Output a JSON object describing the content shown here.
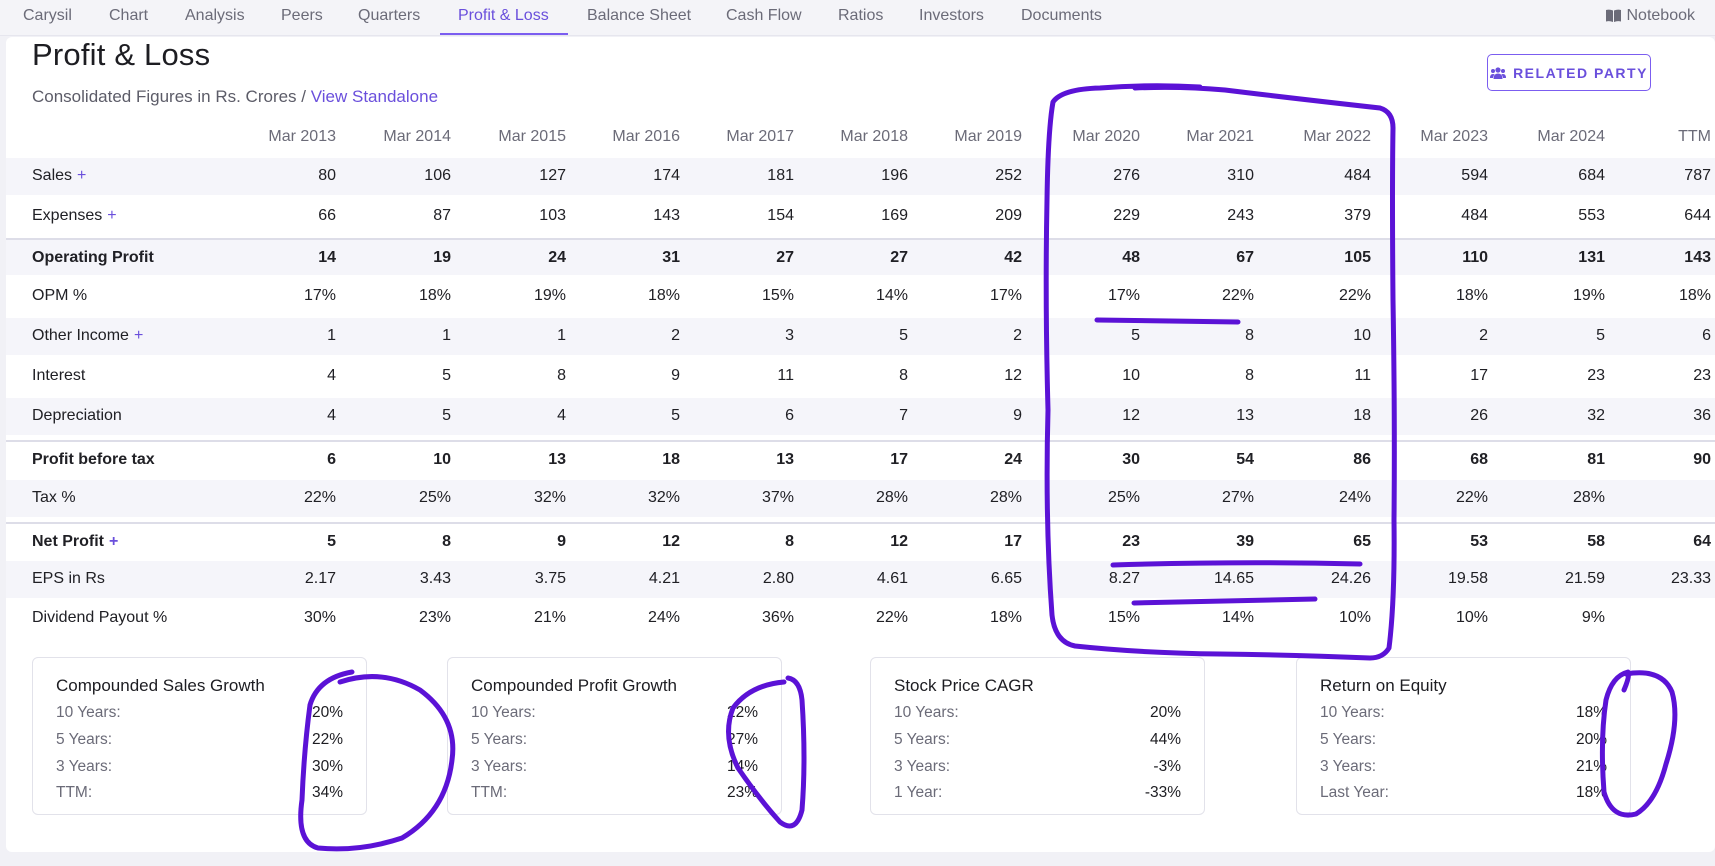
{
  "nav": {
    "items": [
      "Carysil",
      "Chart",
      "Analysis",
      "Peers",
      "Quarters",
      "Profit & Loss",
      "Balance Sheet",
      "Cash Flow",
      "Ratios",
      "Investors",
      "Documents"
    ],
    "active": "Profit & Loss",
    "notebook": "Notebook"
  },
  "header": {
    "title": "Profit & Loss",
    "subtitle": "Consolidated Figures in Rs. Crores / ",
    "standalone_link": "View Standalone",
    "related_party": "RELATED PARTY"
  },
  "table": {
    "columns": [
      "Mar 2013",
      "Mar 2014",
      "Mar 2015",
      "Mar 2016",
      "Mar 2017",
      "Mar 2018",
      "Mar 2019",
      "Mar 2020",
      "Mar 2021",
      "Mar 2022",
      "Mar 2023",
      "Mar 2024",
      "TTM"
    ],
    "rows": [
      {
        "label": "Sales",
        "plus": "+",
        "values": [
          "80",
          "106",
          "127",
          "174",
          "181",
          "196",
          "252",
          "276",
          "310",
          "484",
          "594",
          "684",
          "787"
        ]
      },
      {
        "label": "Expenses",
        "plus": "+",
        "values": [
          "66",
          "87",
          "103",
          "143",
          "154",
          "169",
          "209",
          "229",
          "243",
          "379",
          "484",
          "553",
          "644"
        ]
      },
      {
        "label": "Operating Profit",
        "plus": "",
        "values": [
          "14",
          "19",
          "24",
          "31",
          "27",
          "27",
          "42",
          "48",
          "67",
          "105",
          "110",
          "131",
          "143"
        ]
      },
      {
        "label": "OPM %",
        "plus": "",
        "values": [
          "17%",
          "18%",
          "19%",
          "18%",
          "15%",
          "14%",
          "17%",
          "17%",
          "22%",
          "22%",
          "18%",
          "19%",
          "18%"
        ]
      },
      {
        "label": "Other Income",
        "plus": "+",
        "values": [
          "1",
          "1",
          "1",
          "2",
          "3",
          "5",
          "2",
          "5",
          "8",
          "10",
          "2",
          "5",
          "6"
        ]
      },
      {
        "label": "Interest",
        "plus": "",
        "values": [
          "4",
          "5",
          "8",
          "9",
          "11",
          "8",
          "12",
          "10",
          "8",
          "11",
          "17",
          "23",
          "23"
        ]
      },
      {
        "label": "Depreciation",
        "plus": "",
        "values": [
          "4",
          "5",
          "4",
          "5",
          "6",
          "7",
          "9",
          "12",
          "13",
          "18",
          "26",
          "32",
          "36"
        ]
      },
      {
        "label": "Profit before tax",
        "plus": "",
        "values": [
          "6",
          "10",
          "13",
          "18",
          "13",
          "17",
          "24",
          "30",
          "54",
          "86",
          "68",
          "81",
          "90"
        ]
      },
      {
        "label": "Tax %",
        "plus": "",
        "values": [
          "22%",
          "25%",
          "32%",
          "32%",
          "37%",
          "28%",
          "28%",
          "25%",
          "27%",
          "24%",
          "22%",
          "28%",
          ""
        ]
      },
      {
        "label": "Net Profit",
        "plus": "+",
        "values": [
          "5",
          "8",
          "9",
          "12",
          "8",
          "12",
          "17",
          "23",
          "39",
          "65",
          "53",
          "58",
          "64"
        ]
      },
      {
        "label": "EPS in Rs",
        "plus": "",
        "values": [
          "2.17",
          "3.43",
          "3.75",
          "4.21",
          "2.80",
          "4.61",
          "6.65",
          "8.27",
          "14.65",
          "24.26",
          "19.58",
          "21.59",
          "23.33"
        ]
      },
      {
        "label": "Dividend Payout %",
        "plus": "",
        "values": [
          "30%",
          "23%",
          "21%",
          "24%",
          "36%",
          "22%",
          "18%",
          "15%",
          "14%",
          "10%",
          "10%",
          "9%",
          ""
        ]
      }
    ]
  },
  "growth": [
    {
      "title": "Compounded Sales Growth",
      "lines": [
        [
          "10 Years:",
          "20%"
        ],
        [
          "5 Years:",
          "22%"
        ],
        [
          "3 Years:",
          "30%"
        ],
        [
          "TTM:",
          "34%"
        ]
      ]
    },
    {
      "title": "Compounded Profit Growth",
      "lines": [
        [
          "10 Years:",
          "22%"
        ],
        [
          "5 Years:",
          "27%"
        ],
        [
          "3 Years:",
          "14%"
        ],
        [
          "TTM:",
          "23%"
        ]
      ]
    },
    {
      "title": "Stock Price CAGR",
      "lines": [
        [
          "10 Years:",
          "20%"
        ],
        [
          "5 Years:",
          "44%"
        ],
        [
          "3 Years:",
          "-3%"
        ],
        [
          "1 Year:",
          "-33%"
        ]
      ]
    },
    {
      "title": "Return on Equity",
      "lines": [
        [
          "10 Years:",
          "18%"
        ],
        [
          "5 Years:",
          "20%"
        ],
        [
          "3 Years:",
          "21%"
        ],
        [
          "Last Year:",
          "18%"
        ]
      ]
    }
  ],
  "colors": {
    "accent": "#6a4fdc",
    "annotation_ink": "#5b12d6"
  }
}
